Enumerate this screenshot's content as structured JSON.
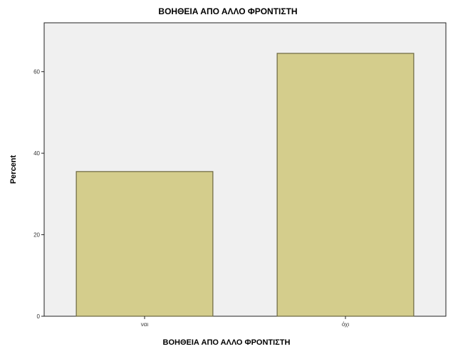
{
  "chart_data": {
    "type": "bar",
    "title": "ΒΟΗΘΕΙΑ ΑΠΟ ΑΛΛΟ ΦΡΟΝΤΙΣΤΗ",
    "xlabel": "ΒΟΗΘΕΙΑ ΑΠΟ ΑΛΛΟ ΦΡΟΝΤΙΣΤΗ",
    "ylabel": "Percent",
    "categories": [
      "ναι",
      "όχι"
    ],
    "values": [
      35.5,
      64.5
    ],
    "ylim": [
      0,
      72
    ],
    "yticks": [
      0,
      20,
      40,
      60
    ],
    "grid": false,
    "colors": {
      "bar_fill": "#d4cd8c",
      "bar_stroke": "#6b6640",
      "plot_background": "#f0f0f0",
      "page_background": "#ffffff"
    }
  }
}
